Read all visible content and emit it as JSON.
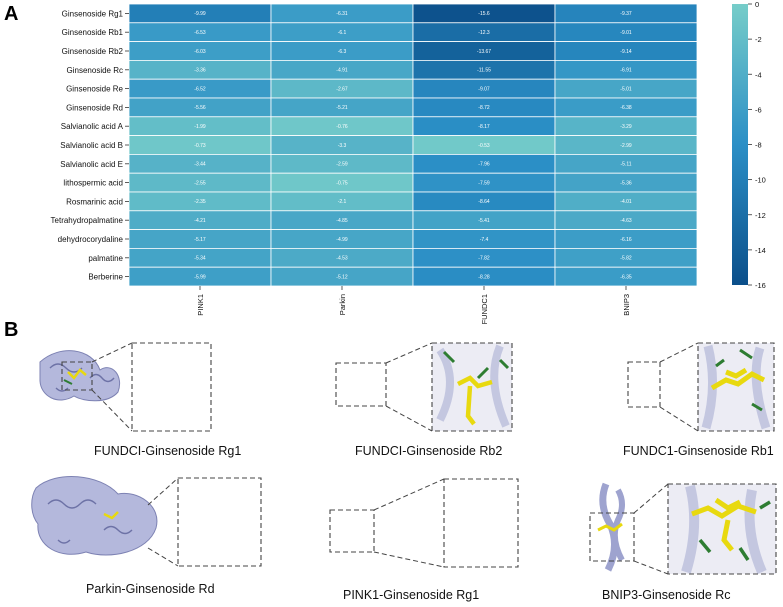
{
  "panel_a_label": "A",
  "panel_b_label": "B",
  "chart_data": {
    "type": "heatmap",
    "title": "",
    "rows": [
      "Ginsenoside Rg1",
      "Ginsenoside Rb1",
      "Ginsenoside Rb2",
      "Ginsenoside Rc",
      "Ginsenoside Re",
      "Ginsenoside Rd",
      "Salvianolic acid A",
      "Salvianolic acid B",
      "Salvianolic acid E",
      "lithospermic acid",
      "Rosmarinic acid",
      "Tetrahydropalmatine",
      "dehydrocorydaline",
      "palmatine",
      "Berberine"
    ],
    "columns": [
      "PINK1",
      "Parkin",
      "FUNDC1",
      "BNIP3"
    ],
    "values": [
      [
        -9.99,
        -6.31,
        -15.6,
        -9.37
      ],
      [
        -6.53,
        -6.1,
        -12.3,
        -9.01
      ],
      [
        -6.03,
        -6.3,
        -13.67,
        -9.14
      ],
      [
        -3.36,
        -4.91,
        -11.55,
        -6.91
      ],
      [
        -6.52,
        -2.67,
        -9.07,
        -5.01
      ],
      [
        -5.56,
        -5.21,
        -8.72,
        -6.38
      ],
      [
        -1.99,
        -0.76,
        -8.17,
        -3.29
      ],
      [
        -0.73,
        -3.3,
        -0.53,
        -2.99
      ],
      [
        -3.44,
        -2.59,
        -7.96,
        -5.11
      ],
      [
        -2.55,
        -0.75,
        -7.59,
        -5.36
      ],
      [
        -2.35,
        -2.1,
        -8.64,
        -4.01
      ],
      [
        -4.21,
        -4.85,
        -5.41,
        -4.63
      ],
      [
        -5.17,
        -4.99,
        -7.4,
        -6.16
      ],
      [
        -5.34,
        -4.53,
        -7.82,
        -5.82
      ],
      [
        -5.99,
        -5.12,
        -8.28,
        -6.35
      ]
    ],
    "colorbar": {
      "min": -16,
      "max": 0,
      "ticks": [
        "0",
        "-2",
        "-4",
        "-6",
        "-8",
        "-10",
        "-12",
        "-14",
        "-16"
      ],
      "low_color": "#0b4f8a",
      "high_color": "#76cdc9"
    }
  },
  "panel_b": {
    "captions": [
      "FUNDCI-Ginsenoside Rg1",
      "FUNDCI-Ginsenoside Rb2",
      "FUNDC1-Ginsenoside Rb1",
      "Parkin-Ginsenoside Rd",
      "PINK1-Ginsenoside Rg1",
      "BNIP3-Ginsenoside Rc"
    ]
  },
  "colors": {
    "protein": "#b4b8dc",
    "ligand": "#e8d90f",
    "residue": "#2e7d32"
  }
}
